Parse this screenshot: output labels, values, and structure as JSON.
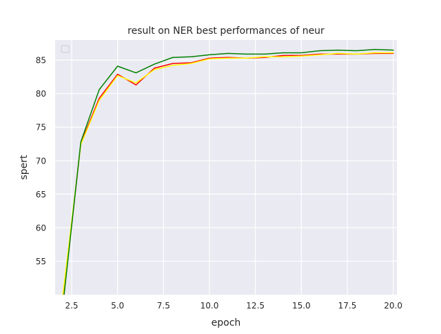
{
  "chart_data": {
    "type": "line",
    "title": "result on NER  best performances of neur",
    "xlabel": "epoch",
    "ylabel": "spert",
    "xlim": [
      1.6,
      20.2
    ],
    "ylim": [
      50,
      88
    ],
    "x_ticks": [
      2.5,
      5.0,
      7.5,
      10.0,
      12.5,
      15.0,
      17.5,
      20.0
    ],
    "x_tick_labels": [
      "2.5",
      "5.0",
      "7.5",
      "10.0",
      "12.5",
      "15.0",
      "17.5",
      "20.0"
    ],
    "y_ticks": [
      55,
      60,
      65,
      70,
      75,
      80,
      85
    ],
    "y_tick_labels": [
      "55",
      "60",
      "65",
      "70",
      "75",
      "80",
      "85"
    ],
    "grid": true,
    "legend": {
      "placement": "upper left",
      "entries": []
    },
    "x": [
      2,
      3,
      4,
      5,
      6,
      7,
      8,
      9,
      10,
      11,
      12,
      13,
      14,
      15,
      16,
      17,
      18,
      19,
      20
    ],
    "series": [
      {
        "color": "#ff0000",
        "values": [
          48.2,
          72.6,
          79.3,
          82.9,
          81.3,
          83.8,
          84.5,
          84.6,
          85.3,
          85.4,
          85.3,
          85.4,
          85.7,
          85.7,
          85.9,
          85.9,
          85.9,
          86.0,
          86.0
        ]
      },
      {
        "color": "#ffff00",
        "values": [
          49.5,
          72.4,
          79.0,
          82.7,
          81.6,
          83.6,
          84.2,
          84.5,
          85.2,
          85.3,
          85.3,
          85.5,
          85.5,
          85.6,
          85.8,
          86.0,
          85.9,
          86.1,
          86.1
        ]
      },
      {
        "color": "#008000",
        "values": [
          47.8,
          72.8,
          80.6,
          84.1,
          83.1,
          84.4,
          85.4,
          85.5,
          85.8,
          86.0,
          85.9,
          85.9,
          86.1,
          86.1,
          86.4,
          86.5,
          86.4,
          86.6,
          86.5
        ]
      }
    ]
  }
}
